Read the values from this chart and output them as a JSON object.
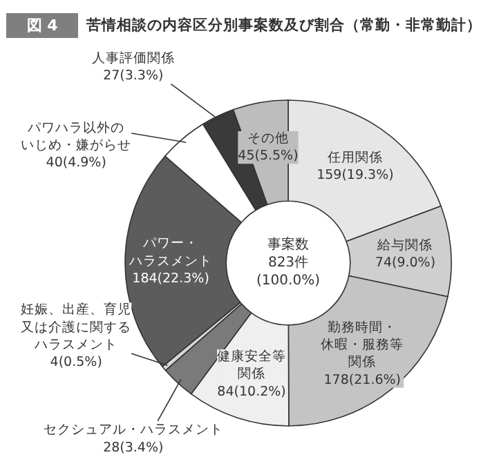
{
  "chart_data": {
    "type": "donut",
    "title": "苦情相談の内容区分別事案数及び割合（常勤・非常勤計）",
    "annotations": [
      "図 4",
      "事案数\n823件\n(100.0%)"
    ],
    "categories": [
      "任用関係",
      "給与関係",
      "勤務時間・休暇・服務等関係",
      "健康安全等関係",
      "セクシュアル・ハラスメント",
      "妊娠、出産、育児又は介護に関するハラスメント",
      "パワー・ハラスメント",
      "パワハラ以外のいじめ・嫌がらせ",
      "人事評価関係",
      "その他"
    ],
    "values": [
      159,
      74,
      178,
      84,
      28,
      4,
      184,
      40,
      27,
      45
    ],
    "value_labels": [
      "159(19.3%)",
      "74(9.0%)",
      "178(21.6%)",
      "84(10.2%)",
      "28(3.4%)",
      "4(0.5%)",
      "184(22.3%)",
      "40(4.9%)",
      "27(3.3%)",
      "45(5.5%)"
    ],
    "colors": [
      "#e6e6e6",
      "#cfcfcf",
      "#c4c4c4",
      "#efefef",
      "#7a7a7a",
      "#d6d6d6",
      "#5c5c5c",
      "#ffffff",
      "#3a3a3a",
      "#bdbdbd"
    ]
  }
}
